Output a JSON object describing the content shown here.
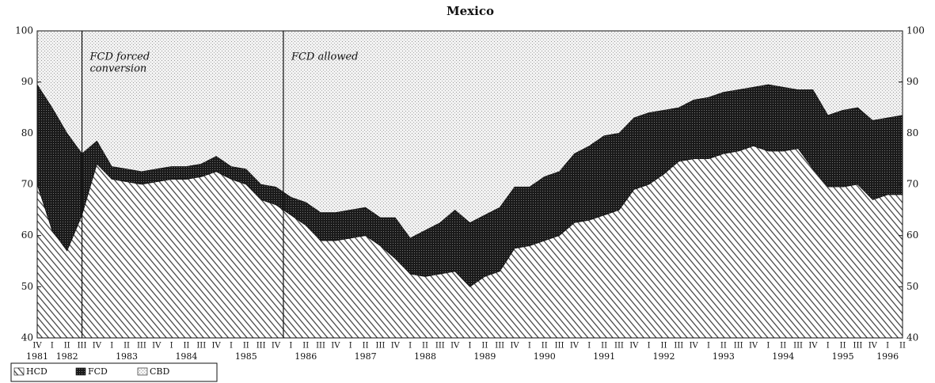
{
  "chart_data": {
    "type": "stacked_area",
    "title": "Mexico",
    "categories": [
      "IV",
      "I",
      "II",
      "III",
      "IV",
      "I",
      "II",
      "III",
      "IV",
      "I",
      "II",
      "III",
      "IV",
      "I",
      "II",
      "III",
      "IV",
      "I",
      "II",
      "III",
      "IV",
      "I",
      "II",
      "III",
      "IV",
      "I",
      "II",
      "III",
      "IV",
      "I",
      "II",
      "III",
      "IV",
      "I",
      "II",
      "III",
      "IV",
      "I",
      "II",
      "III",
      "IV",
      "I",
      "II",
      "III",
      "IV",
      "I",
      "II",
      "III",
      "IV",
      "I",
      "II",
      "III",
      "IV",
      "I",
      "II",
      "III",
      "IV",
      "I",
      "II"
    ],
    "years": [
      "1981",
      null,
      "1982",
      null,
      null,
      null,
      "1983",
      null,
      null,
      null,
      "1984",
      null,
      null,
      null,
      "1985",
      null,
      null,
      null,
      "1986",
      null,
      null,
      null,
      "1987",
      null,
      null,
      null,
      "1988",
      null,
      null,
      null,
      "1989",
      null,
      null,
      null,
      "1990",
      null,
      null,
      null,
      "1991",
      null,
      null,
      null,
      "1992",
      null,
      null,
      null,
      "1993",
      null,
      null,
      null,
      "1994",
      null,
      null,
      null,
      "1995",
      null,
      null,
      "1996",
      null
    ],
    "series": [
      {
        "name": "HCD",
        "color": "#3a3a3a",
        "values": [
          70,
          61,
          57,
          64,
          74,
          71,
          70.5,
          70,
          70.5,
          71,
          71,
          71.5,
          72.5,
          71,
          70,
          67,
          66,
          64,
          62,
          59,
          59,
          59.5,
          60,
          58,
          55.5,
          52.5,
          52,
          52.5,
          53,
          50,
          52,
          53,
          57.5,
          58,
          59,
          60,
          62.5,
          63,
          64,
          65,
          69,
          70,
          72,
          74.5,
          75,
          75,
          76,
          76.5,
          77.5,
          76.5,
          76.5,
          77,
          73,
          69.5,
          69.5,
          70,
          67,
          68,
          68
        ]
      },
      {
        "name": "FCD",
        "color": "#1a1a1a",
        "values": [
          19.5,
          24,
          23,
          12,
          4.5,
          2.5,
          2.5,
          2.5,
          2.5,
          2.5,
          2.5,
          2.5,
          3,
          2.5,
          3,
          3,
          3.5,
          3.5,
          4.5,
          5.5,
          5.5,
          5.5,
          5.5,
          5.5,
          8,
          7,
          9,
          10,
          12,
          12.5,
          12,
          12.5,
          12,
          11.5,
          12.5,
          12.5,
          13.5,
          14.5,
          15.5,
          15,
          14,
          14,
          12.5,
          10.5,
          11.5,
          12,
          12,
          12,
          11.5,
          13,
          12.5,
          11.5,
          15.5,
          14,
          15,
          15,
          15.5,
          15,
          15.5
        ]
      },
      {
        "name": "CBD",
        "color": "#9a9a9a",
        "values": [
          10.5,
          15,
          20,
          24,
          21.5,
          26.5,
          27,
          27.5,
          27,
          26.5,
          26.5,
          26,
          24.5,
          26.5,
          27,
          30,
          30.5,
          32.5,
          33.5,
          35.5,
          35.5,
          35,
          34.5,
          36.5,
          36.5,
          40.5,
          39,
          37.5,
          35,
          37.5,
          36,
          34.5,
          30.5,
          30.5,
          28.5,
          27.5,
          24,
          22.5,
          20.5,
          20,
          17,
          16,
          15.5,
          15,
          13.5,
          13,
          12,
          11.5,
          11,
          10.5,
          11,
          11.5,
          11.5,
          16.5,
          15.5,
          15,
          17.5,
          17,
          16.5
        ]
      }
    ],
    "annotations": [
      {
        "lines": [
          "FCD forced",
          "conversion"
        ],
        "x": 3
      },
      {
        "lines": [
          "FCD allowed"
        ],
        "x": 16.5
      }
    ],
    "ylim": [
      40,
      100
    ],
    "yticks": [
      40,
      50,
      60,
      70,
      80,
      90,
      100
    ],
    "right_axis": true
  }
}
